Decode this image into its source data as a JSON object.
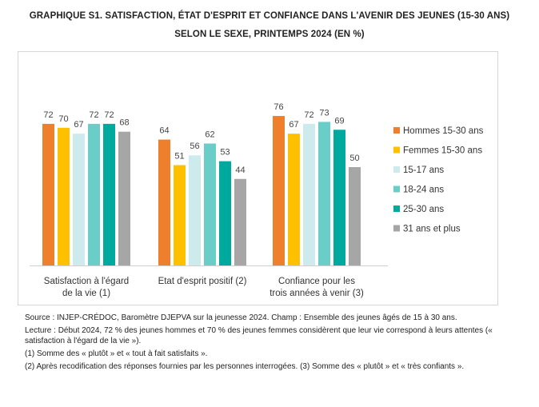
{
  "title_line1": "GRAPHIQUE S1. SATISFACTION, ÉTAT D'ESPRIT ET CONFIANCE DANS L'AVENIR DES JEUNES (15-30 ANS)",
  "title_line2": "SELON LE SEXE, PRINTEMPS 2024 (EN %)",
  "chart_data": {
    "type": "bar",
    "categories": [
      [
        "Satisfaction à l'égard",
        "de la vie (1)"
      ],
      [
        "Etat d'esprit positif (2)"
      ],
      [
        "Confiance pour les",
        "trois années à venir (3)"
      ]
    ],
    "series": [
      {
        "name": "Hommes 15-30 ans",
        "color": "#ee7f2d",
        "values": [
          72,
          64,
          76
        ]
      },
      {
        "name": "Femmes 15-30 ans",
        "color": "#ffc000",
        "values": [
          70,
          51,
          67
        ]
      },
      {
        "name": "15-17 ans",
        "color": "#cdebed",
        "values": [
          67,
          56,
          72
        ]
      },
      {
        "name": "18-24 ans",
        "color": "#6bcdc8",
        "values": [
          72,
          62,
          73
        ]
      },
      {
        "name": "25-30 ans",
        "color": "#00a99d",
        "values": [
          72,
          53,
          69
        ]
      },
      {
        "name": "31 ans et plus",
        "color": "#a6a6a6",
        "values": [
          68,
          44,
          50
        ]
      }
    ],
    "ylim": [
      0,
      100
    ],
    "grid": false,
    "legend_position": "right"
  },
  "notes": {
    "source": "Source : INJEP-CRÉDOC, Baromètre DJEPVA sur la jeunesse 2024. Champ : Ensemble des jeunes âgés de 15 à 30 ans.",
    "lecture": "Lecture : Début 2024, 72 % des jeunes hommes et 70 % des jeunes femmes considèrent que leur vie correspond à leurs attentes (« satisfaction à l'égard de la vie »).",
    "note1": "(1) Somme des « plutôt » et « tout à fait satisfaits ».",
    "note2": "(2) Après recodification des réponses fournies par les personnes interrogées. (3) Somme des « plutôt » et « très confiants »."
  }
}
